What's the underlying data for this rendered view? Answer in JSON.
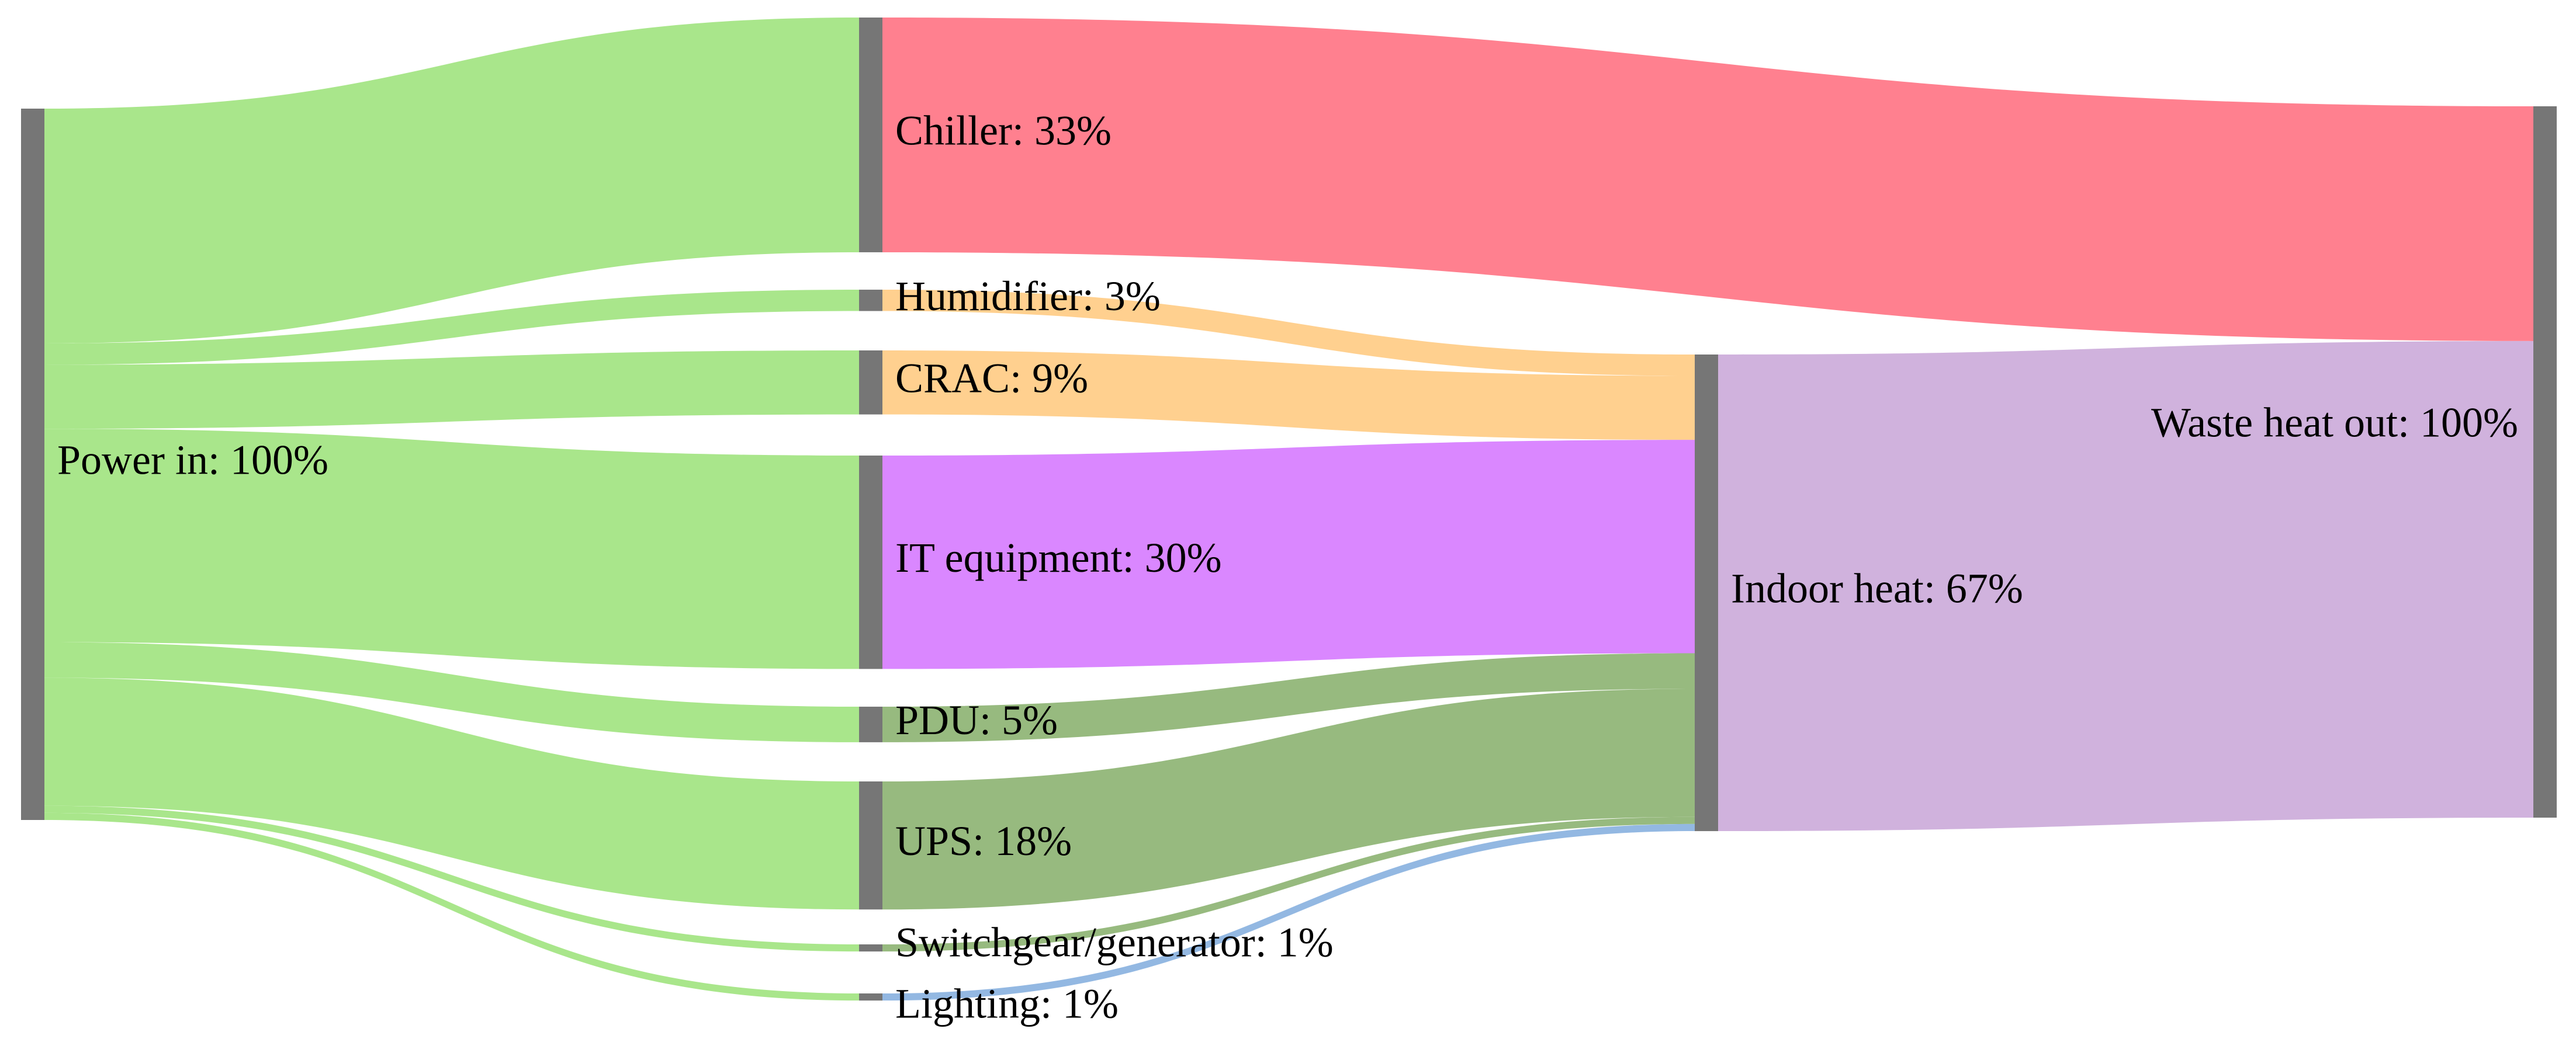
{
  "chart_data": {
    "type": "sankey",
    "title": "",
    "value_unit": "%",
    "colors": {
      "node_bar": "#767676",
      "power_flow": "#a9e68b",
      "chiller_flow": "#ff808f",
      "humidifier_crac_flow": "#ffd08f",
      "it_flow": "#da87ff",
      "pdu_ups_switchgear_flow": "#97ba7f",
      "lighting_flow": "#93b8e2",
      "waste_heat_flow": "#d0b2dd"
    },
    "nodes": [
      {
        "id": "power",
        "label": "Power in: 100%",
        "value": 100
      },
      {
        "id": "chiller",
        "label": "Chiller: 33%",
        "value": 33
      },
      {
        "id": "humidifier",
        "label": "Humidifier: 3%",
        "value": 3
      },
      {
        "id": "crac",
        "label": "CRAC: 9%",
        "value": 9
      },
      {
        "id": "it",
        "label": "IT equipment: 30%",
        "value": 30
      },
      {
        "id": "pdu",
        "label": "PDU: 5%",
        "value": 5
      },
      {
        "id": "ups",
        "label": "UPS: 18%",
        "value": 18
      },
      {
        "id": "switchgear",
        "label": "Switchgear/generator: 1%",
        "value": 1
      },
      {
        "id": "lighting",
        "label": "Lighting: 1%",
        "value": 1
      },
      {
        "id": "indoor",
        "label": "Indoor heat: 67%",
        "value": 67
      },
      {
        "id": "waste",
        "label": "Waste heat out: 100%",
        "value": 100
      }
    ],
    "links": [
      {
        "source": "power",
        "target": "chiller",
        "value": 33,
        "color": "power_flow"
      },
      {
        "source": "power",
        "target": "humidifier",
        "value": 3,
        "color": "power_flow"
      },
      {
        "source": "power",
        "target": "crac",
        "value": 9,
        "color": "power_flow"
      },
      {
        "source": "power",
        "target": "it",
        "value": 30,
        "color": "power_flow"
      },
      {
        "source": "power",
        "target": "pdu",
        "value": 5,
        "color": "power_flow"
      },
      {
        "source": "power",
        "target": "ups",
        "value": 18,
        "color": "power_flow"
      },
      {
        "source": "power",
        "target": "switchgear",
        "value": 1,
        "color": "power_flow"
      },
      {
        "source": "power",
        "target": "lighting",
        "value": 1,
        "color": "power_flow"
      },
      {
        "source": "chiller",
        "target": "waste",
        "value": 33,
        "color": "chiller_flow"
      },
      {
        "source": "humidifier",
        "target": "indoor",
        "value": 3,
        "color": "humidifier_crac_flow"
      },
      {
        "source": "crac",
        "target": "indoor",
        "value": 9,
        "color": "humidifier_crac_flow"
      },
      {
        "source": "it",
        "target": "indoor",
        "value": 30,
        "color": "it_flow"
      },
      {
        "source": "pdu",
        "target": "indoor",
        "value": 5,
        "color": "pdu_ups_switchgear_flow"
      },
      {
        "source": "ups",
        "target": "indoor",
        "value": 18,
        "color": "pdu_ups_switchgear_flow"
      },
      {
        "source": "switchgear",
        "target": "indoor",
        "value": 1,
        "color": "pdu_ups_switchgear_flow"
      },
      {
        "source": "lighting",
        "target": "indoor",
        "value": 1,
        "color": "lighting_flow"
      },
      {
        "source": "indoor",
        "target": "waste",
        "value": 67,
        "color": "waste_heat_flow"
      }
    ]
  }
}
